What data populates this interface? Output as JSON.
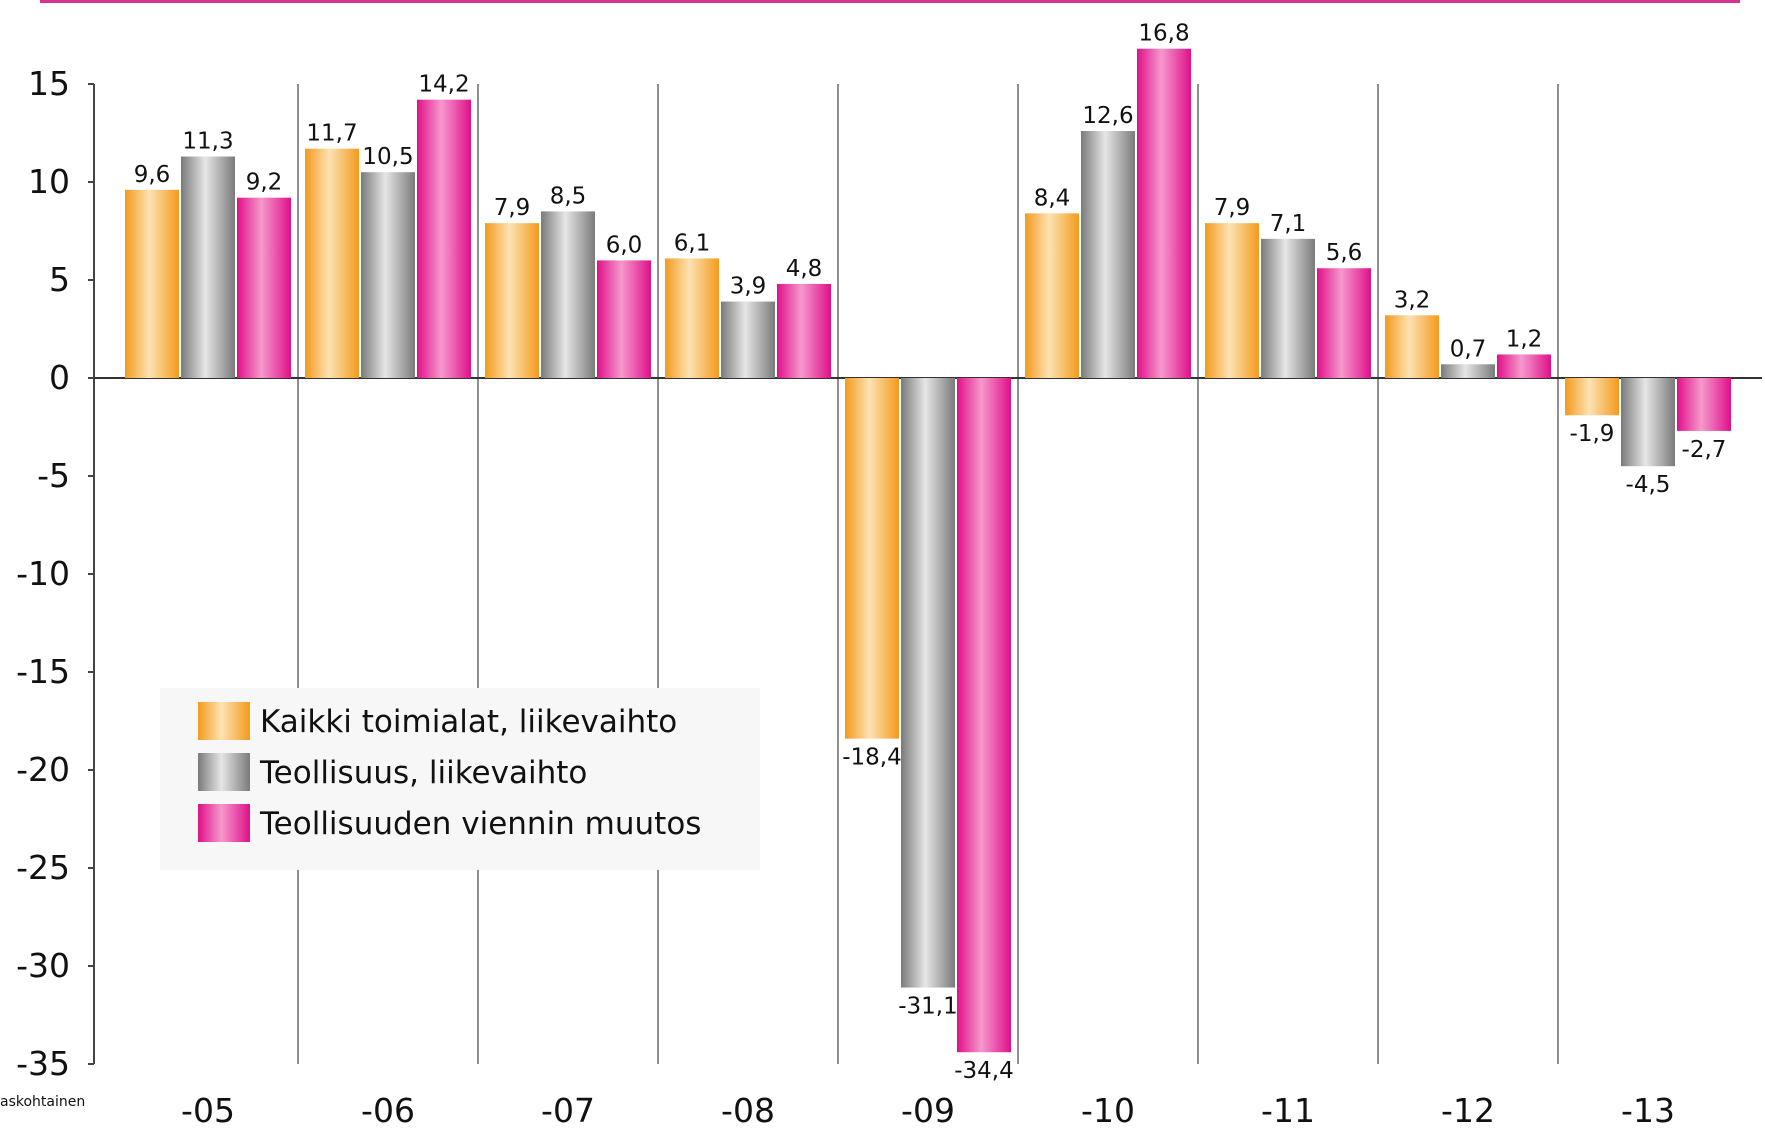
{
  "chart_data": {
    "type": "bar",
    "categories": [
      "-05",
      "-06",
      "-07",
      "-08",
      "-09",
      "-10",
      "-11",
      "-12",
      "-13"
    ],
    "series": [
      {
        "name": "Kaikki toimialat, liikevaihto",
        "color": "#f4a020",
        "values": [
          9.6,
          11.7,
          7.9,
          6.1,
          -18.4,
          8.4,
          7.9,
          3.2,
          -1.9
        ],
        "labels": [
          "9,6",
          "11,7",
          "7,9",
          "6,1",
          "-18,4",
          "8,4",
          "7,9",
          "3,2",
          "-1,9"
        ]
      },
      {
        "name": "Teollisuus, liikevaihto",
        "color": "#8c8c8c",
        "values": [
          11.3,
          10.5,
          8.5,
          3.9,
          -31.1,
          12.6,
          7.1,
          0.7,
          -4.5
        ],
        "labels": [
          "11,3",
          "10,5",
          "8,5",
          "3,9",
          "-31,1",
          "12,6",
          "7,1",
          "0,7",
          "-4,5"
        ]
      },
      {
        "name": "Teollisuuden viennin muutos",
        "color": "#e0108a",
        "values": [
          9.2,
          14.2,
          6.0,
          4.8,
          -34.4,
          16.8,
          5.6,
          1.2,
          -2.7
        ],
        "labels": [
          "9,2",
          "14,2",
          "6,0",
          "4,8",
          "-34,4",
          "16,8",
          "5,6",
          "1,2",
          "-2,7"
        ]
      }
    ],
    "yticks": [
      "15",
      "10",
      "5",
      "0",
      "-5",
      "-10",
      "-15",
      "-20",
      "-25",
      "-30",
      "-35"
    ],
    "ylim": [
      -35,
      15
    ],
    "legend_position": "lower-left",
    "grid": "vertical separators between categories",
    "footnote": "askohtainen",
    "accent_color": "#d6338f"
  }
}
